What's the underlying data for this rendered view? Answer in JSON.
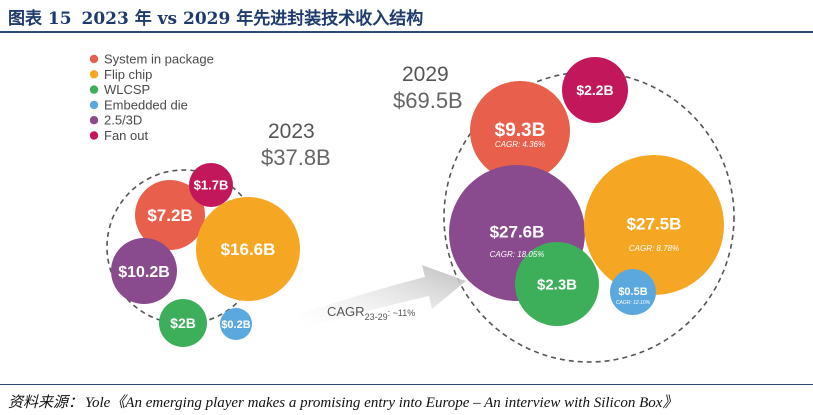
{
  "figure": {
    "number": "图表 15",
    "title": "2023 年 vs 2029 年先进封装技术收入结构"
  },
  "source": {
    "prefix": "资料来源：",
    "text": "Yole《An emerging player makes a promising entry into Europe – An interview with Silicon Box》"
  },
  "chart_data": {
    "type": "bubble",
    "legend": [
      {
        "name": "System in package",
        "color": "#e8604c"
      },
      {
        "name": "Flip chip",
        "color": "#f5a623"
      },
      {
        "name": "WLCSP",
        "color": "#3dae5a"
      },
      {
        "name": "Embedded die",
        "color": "#5ba8df"
      },
      {
        "name": "2.5/3D",
        "color": "#8a4a8e"
      },
      {
        "name": "Fan out",
        "color": "#c2185b"
      }
    ],
    "groups": [
      {
        "year": "2023",
        "total": "$37.8B",
        "bubbles": [
          {
            "segment": "System in package",
            "label": "$7.2B",
            "value": 7.2
          },
          {
            "segment": "Fan out",
            "label": "$1.7B",
            "value": 1.7
          },
          {
            "segment": "Flip chip",
            "label": "$16.6B",
            "value": 16.6
          },
          {
            "segment": "2.5/3D",
            "label": "$10.2B",
            "value": 10.2
          },
          {
            "segment": "WLCSP",
            "label": "$2B",
            "value": 2.0
          },
          {
            "segment": "Embedded die",
            "label": "$0.2B",
            "value": 0.2
          }
        ]
      },
      {
        "year": "2029",
        "total": "$69.5B",
        "bubbles": [
          {
            "segment": "System in package",
            "label": "$9.3B",
            "value": 9.3,
            "cagr": "CAGR: 4.36%"
          },
          {
            "segment": "Fan out",
            "label": "$2.2B",
            "value": 2.2
          },
          {
            "segment": "2.5/3D",
            "label": "$27.6B",
            "value": 27.6,
            "cagr": "CAGR: 18.05%"
          },
          {
            "segment": "Flip chip",
            "label": "$27.5B",
            "value": 27.5,
            "cagr": "CAGR: 8.78%"
          },
          {
            "segment": "WLCSP",
            "label": "$2.3B",
            "value": 2.3
          },
          {
            "segment": "Embedded die",
            "label": "$0.5B",
            "value": 0.5,
            "cagr": "CAGR: 12.10%"
          }
        ]
      }
    ],
    "arrow_label": {
      "base": "CAGR",
      "subscript": "23-29",
      "suffix": ": ~11%"
    }
  }
}
